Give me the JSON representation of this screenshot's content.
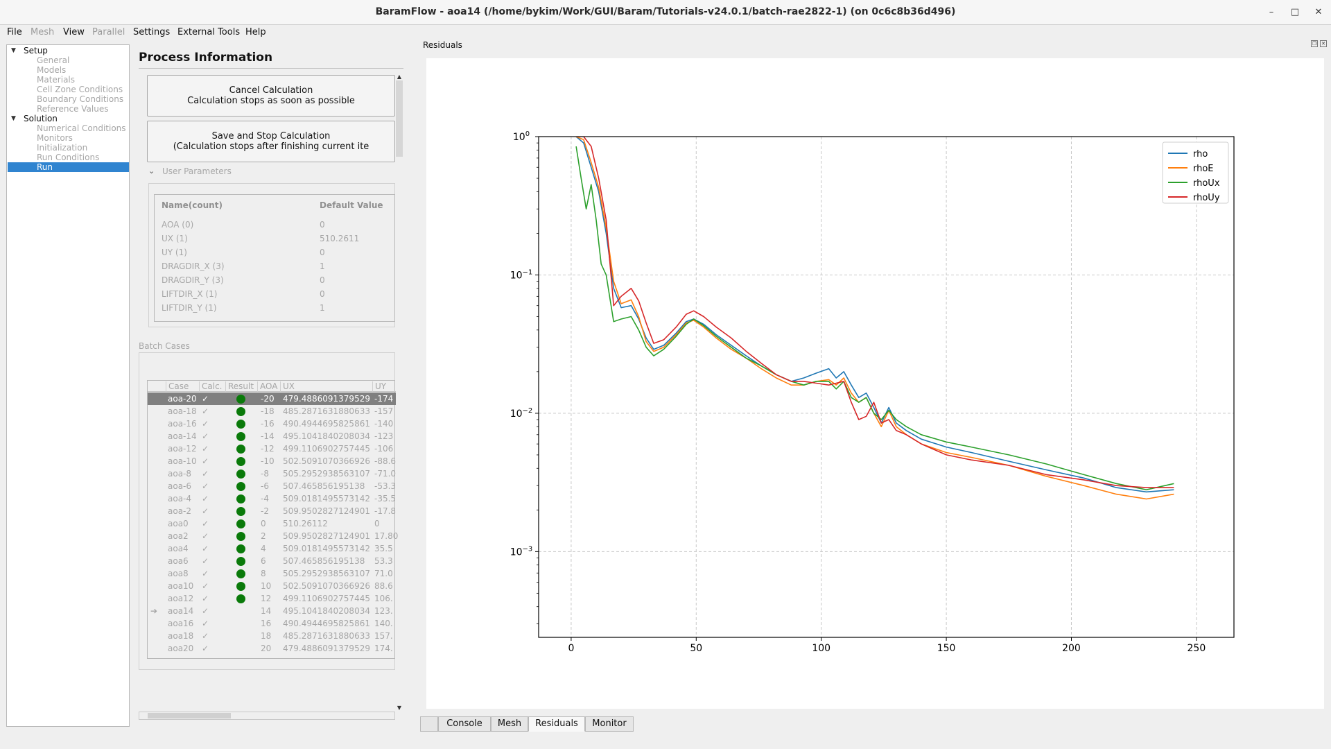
{
  "window": {
    "title": "BaramFlow - aoa14 (/home/bykim/Work/GUI/Baram/Tutorials-v24.0.1/batch-rae2822-1) (on 0c6c8b36d496)",
    "minimize": "–",
    "maximize": "□",
    "close": "✕"
  },
  "menu": {
    "file": "File",
    "mesh": "Mesh",
    "view": "View",
    "parallel": "Parallel",
    "settings": "Settings",
    "external_tools": "External Tools",
    "help": "Help"
  },
  "tree": {
    "setup": "Setup",
    "setup_items": [
      "General",
      "Models",
      "Materials",
      "Cell Zone Conditions",
      "Boundary Conditions",
      "Reference Values"
    ],
    "solution": "Solution",
    "solution_items": [
      "Numerical Conditions",
      "Monitors",
      "Initialization",
      "Run Conditions",
      "Run"
    ]
  },
  "process": {
    "title": "Process Information",
    "cancel_title": "Cancel Calculation",
    "cancel_desc": "Calculation stops as soon as possible",
    "save_stop_title": "Save and Stop Calculation",
    "save_stop_desc": "(Calculation stops after finishing current ite",
    "user_params_label": "User Parameters",
    "params_head": {
      "name": "Name(count)",
      "default": "Default Value"
    },
    "params": [
      {
        "name": "AOA (0)",
        "value": "0"
      },
      {
        "name": "UX (1)",
        "value": "510.2611"
      },
      {
        "name": "UY (1)",
        "value": "0"
      },
      {
        "name": "DRAGDIR_X (3)",
        "value": "1"
      },
      {
        "name": "DRAGDIR_Y (3)",
        "value": "0"
      },
      {
        "name": "LIFTDIR_X (1)",
        "value": "0"
      },
      {
        "name": "LIFTDIR_Y (1)",
        "value": "1"
      }
    ],
    "batch_label": "Batch Cases",
    "batch_head": {
      "case": "Case",
      "calc": "Calc.",
      "result": "Result",
      "aoa": "AOA",
      "ux": "UX",
      "uy": "UY"
    },
    "batch_rows": [
      {
        "case": "aoa-20",
        "calc": "✓",
        "done": true,
        "aoa": "-20",
        "ux": "479.4886091379529",
        "uy": "-174",
        "mark": ""
      },
      {
        "case": "aoa-18",
        "calc": "✓",
        "done": true,
        "aoa": "-18",
        "ux": "485.2871631880633",
        "uy": "-157",
        "mark": ""
      },
      {
        "case": "aoa-16",
        "calc": "✓",
        "done": true,
        "aoa": "-16",
        "ux": "490.4944695825861",
        "uy": "-140",
        "mark": ""
      },
      {
        "case": "aoa-14",
        "calc": "✓",
        "done": true,
        "aoa": "-14",
        "ux": "495.1041840208034",
        "uy": "-123",
        "mark": ""
      },
      {
        "case": "aoa-12",
        "calc": "✓",
        "done": true,
        "aoa": "-12",
        "ux": "499.1106902757445",
        "uy": "-106",
        "mark": ""
      },
      {
        "case": "aoa-10",
        "calc": "✓",
        "done": true,
        "aoa": "-10",
        "ux": "502.5091070366926",
        "uy": "-88.6",
        "mark": ""
      },
      {
        "case": "aoa-8",
        "calc": "✓",
        "done": true,
        "aoa": "-8",
        "ux": "505.2952938563107",
        "uy": "-71.0",
        "mark": ""
      },
      {
        "case": "aoa-6",
        "calc": "✓",
        "done": true,
        "aoa": "-6",
        "ux": "507.465856195138",
        "uy": "-53.3",
        "mark": ""
      },
      {
        "case": "aoa-4",
        "calc": "✓",
        "done": true,
        "aoa": "-4",
        "ux": "509.0181495573142",
        "uy": "-35.5",
        "mark": ""
      },
      {
        "case": "aoa-2",
        "calc": "✓",
        "done": true,
        "aoa": "-2",
        "ux": "509.9502827124901",
        "uy": "-17.8",
        "mark": ""
      },
      {
        "case": "aoa0",
        "calc": "✓",
        "done": true,
        "aoa": "0",
        "ux": "510.26112",
        "uy": "0",
        "mark": ""
      },
      {
        "case": "aoa2",
        "calc": "✓",
        "done": true,
        "aoa": "2",
        "ux": "509.9502827124901",
        "uy": "17.80",
        "mark": ""
      },
      {
        "case": "aoa4",
        "calc": "✓",
        "done": true,
        "aoa": "4",
        "ux": "509.0181495573142",
        "uy": "35.5",
        "mark": ""
      },
      {
        "case": "aoa6",
        "calc": "✓",
        "done": true,
        "aoa": "6",
        "ux": "507.465856195138",
        "uy": "53.3",
        "mark": ""
      },
      {
        "case": "aoa8",
        "calc": "✓",
        "done": true,
        "aoa": "8",
        "ux": "505.2952938563107",
        "uy": "71.0",
        "mark": ""
      },
      {
        "case": "aoa10",
        "calc": "✓",
        "done": true,
        "aoa": "10",
        "ux": "502.5091070366926",
        "uy": "88.6",
        "mark": ""
      },
      {
        "case": "aoa12",
        "calc": "✓",
        "done": true,
        "aoa": "12",
        "ux": "499.1106902757445",
        "uy": "106.",
        "mark": ""
      },
      {
        "case": "aoa14",
        "calc": "✓",
        "done": false,
        "aoa": "14",
        "ux": "495.1041840208034",
        "uy": "123.",
        "mark": "➔"
      },
      {
        "case": "aoa16",
        "calc": "✓",
        "done": false,
        "aoa": "16",
        "ux": "490.4944695825861",
        "uy": "140.",
        "mark": ""
      },
      {
        "case": "aoa18",
        "calc": "✓",
        "done": false,
        "aoa": "18",
        "ux": "485.2871631880633",
        "uy": "157.",
        "mark": ""
      },
      {
        "case": "aoa20",
        "calc": "✓",
        "done": false,
        "aoa": "20",
        "ux": "479.4886091379529",
        "uy": "174.",
        "mark": ""
      }
    ]
  },
  "residuals": {
    "title": "Residuals",
    "tabs": [
      "",
      "Console",
      "Mesh",
      "Residuals",
      "Monitor"
    ],
    "active_tab": "Residuals"
  },
  "colors": {
    "selection": "#3084d0",
    "done_dot": "#0a7a0a"
  },
  "chart_data": {
    "type": "line",
    "xlabel": "",
    "ylabel": "",
    "xlim": [
      -13,
      265
    ],
    "ylim_log10": [
      -3.62,
      0
    ],
    "y_scale": "log",
    "x_ticks": [
      "0",
      "50",
      "100",
      "150",
      "200",
      "250"
    ],
    "x_tick_values": [
      0,
      50,
      100,
      150,
      200,
      250
    ],
    "y_ticks": [
      {
        "base": "10",
        "exp": "0"
      },
      {
        "base": "10",
        "exp": "−1"
      },
      {
        "base": "10",
        "exp": "−2"
      },
      {
        "base": "10",
        "exp": "−3"
      }
    ],
    "y_tick_values": [
      0,
      -1,
      -2,
      -3
    ],
    "grid": true,
    "legend_position": "top-right",
    "series": [
      {
        "name": "rho",
        "color": "#1f77b4",
        "x": [
          2,
          5,
          8,
          11,
          14,
          17,
          20,
          24,
          27,
          30,
          33,
          37,
          42,
          46,
          49,
          53,
          58,
          64,
          70,
          76,
          82,
          88,
          93,
          98,
          103,
          106,
          109,
          112,
          115,
          118,
          121,
          124,
          127,
          130,
          134,
          140,
          150,
          160,
          175,
          190,
          205,
          218,
          230,
          241
        ],
        "y": [
          1.0,
          0.9,
          0.6,
          0.4,
          0.2,
          0.08,
          0.058,
          0.06,
          0.048,
          0.035,
          0.029,
          0.031,
          0.038,
          0.046,
          0.048,
          0.044,
          0.037,
          0.031,
          0.026,
          0.022,
          0.019,
          0.017,
          0.018,
          0.0195,
          0.021,
          0.018,
          0.02,
          0.016,
          0.013,
          0.014,
          0.011,
          0.0085,
          0.011,
          0.0085,
          0.0075,
          0.0065,
          0.0057,
          0.0052,
          0.0045,
          0.0039,
          0.0034,
          0.0029,
          0.0027,
          0.0028
        ]
      },
      {
        "name": "rhoE",
        "color": "#ff7f0e",
        "x": [
          2,
          5,
          8,
          11,
          14,
          17,
          20,
          24,
          27,
          30,
          33,
          37,
          42,
          46,
          49,
          53,
          58,
          64,
          70,
          76,
          82,
          88,
          93,
          98,
          103,
          106,
          109,
          112,
          115,
          118,
          121,
          124,
          127,
          130,
          134,
          140,
          150,
          160,
          175,
          190,
          205,
          218,
          230,
          241
        ],
        "y": [
          1.0,
          0.95,
          0.65,
          0.43,
          0.22,
          0.09,
          0.062,
          0.066,
          0.05,
          0.033,
          0.028,
          0.03,
          0.037,
          0.045,
          0.047,
          0.042,
          0.035,
          0.029,
          0.025,
          0.021,
          0.018,
          0.016,
          0.016,
          0.017,
          0.0175,
          0.016,
          0.018,
          0.014,
          0.012,
          0.013,
          0.01,
          0.008,
          0.0105,
          0.008,
          0.007,
          0.006,
          0.0052,
          0.0048,
          0.0042,
          0.0035,
          0.003,
          0.0026,
          0.0024,
          0.0026
        ]
      },
      {
        "name": "rhoUx",
        "color": "#2ca02c",
        "x": [
          2,
          4,
          6,
          8,
          10,
          12,
          14,
          17,
          20,
          24,
          27,
          30,
          33,
          37,
          42,
          46,
          49,
          53,
          58,
          64,
          70,
          76,
          82,
          88,
          93,
          98,
          103,
          106,
          109,
          112,
          115,
          118,
          121,
          124,
          127,
          130,
          134,
          140,
          150,
          160,
          175,
          190,
          205,
          218,
          230,
          241
        ],
        "y": [
          0.85,
          0.5,
          0.3,
          0.45,
          0.25,
          0.12,
          0.1,
          0.046,
          0.048,
          0.05,
          0.04,
          0.03,
          0.026,
          0.029,
          0.036,
          0.044,
          0.048,
          0.043,
          0.036,
          0.03,
          0.025,
          0.022,
          0.019,
          0.017,
          0.016,
          0.017,
          0.017,
          0.015,
          0.017,
          0.013,
          0.012,
          0.013,
          0.01,
          0.009,
          0.0105,
          0.009,
          0.008,
          0.007,
          0.0062,
          0.0057,
          0.005,
          0.0043,
          0.0036,
          0.0031,
          0.0028,
          0.0031
        ]
      },
      {
        "name": "rhoUy",
        "color": "#d62728",
        "x": [
          2,
          5,
          8,
          11,
          14,
          17,
          20,
          24,
          27,
          30,
          33,
          37,
          42,
          46,
          49,
          53,
          58,
          64,
          70,
          76,
          82,
          88,
          93,
          98,
          103,
          106,
          109,
          112,
          115,
          118,
          121,
          124,
          127,
          130,
          134,
          140,
          150,
          160,
          175,
          190,
          205,
          218,
          230,
          241
        ],
        "y": [
          1.0,
          1.0,
          0.85,
          0.5,
          0.25,
          0.06,
          0.07,
          0.08,
          0.065,
          0.045,
          0.032,
          0.034,
          0.042,
          0.052,
          0.055,
          0.05,
          0.042,
          0.035,
          0.028,
          0.023,
          0.019,
          0.017,
          0.017,
          0.0165,
          0.016,
          0.0165,
          0.017,
          0.012,
          0.009,
          0.0095,
          0.012,
          0.0085,
          0.009,
          0.0075,
          0.007,
          0.006,
          0.005,
          0.0046,
          0.0042,
          0.0036,
          0.0033,
          0.003,
          0.0029,
          0.0029
        ]
      }
    ]
  }
}
